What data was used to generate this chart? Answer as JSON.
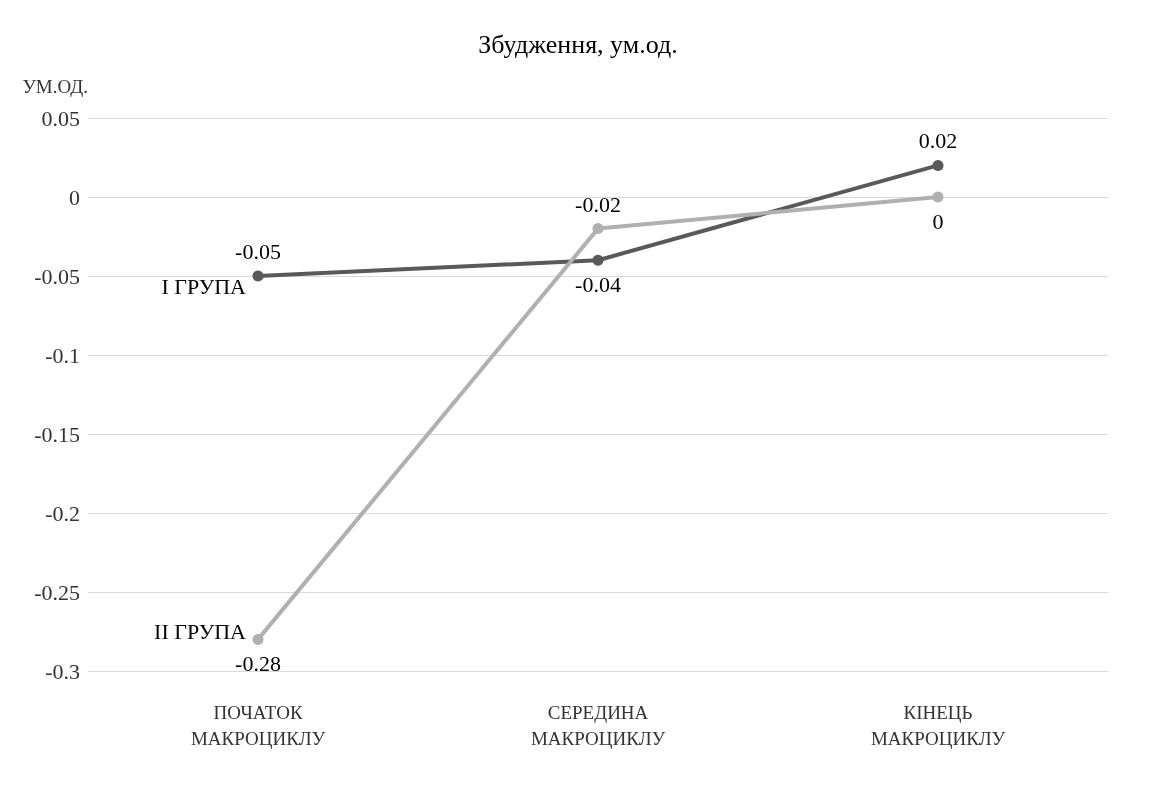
{
  "chart_data": {
    "type": "line",
    "title": "Збудження, ум.од.",
    "ylabel": "УМ.ОД.",
    "categories": [
      "ПОЧАТОК МАКРОЦИКЛУ",
      "СЕРЕДИНА МАКРОЦИКЛУ",
      "КІНЕЦЬ МАКРОЦИКЛУ"
    ],
    "series": [
      {
        "name": "I ГРУПА",
        "color": "#595959",
        "values": [
          -0.05,
          -0.04,
          0.02
        ]
      },
      {
        "name": "II ГРУПА",
        "color": "#b0b0b0",
        "values": [
          -0.28,
          -0.02,
          0
        ]
      }
    ],
    "ylim": [
      -0.3,
      0.05
    ],
    "yticks": [
      -0.3,
      -0.25,
      -0.2,
      -0.15,
      -0.1,
      -0.05,
      0,
      0.05
    ],
    "grid": "y",
    "legend": false,
    "data_labels": true,
    "marker": "circle",
    "line_style": "solid"
  }
}
